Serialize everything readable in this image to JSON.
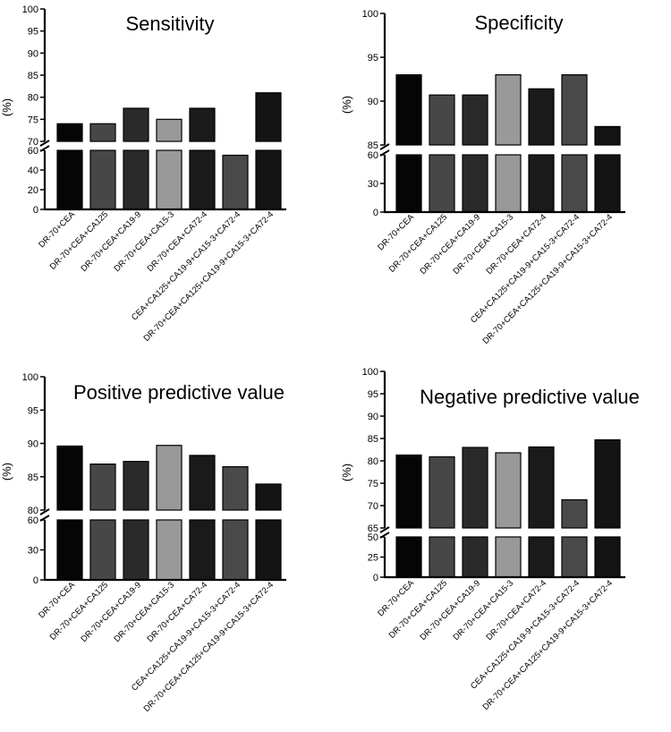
{
  "chart_data": [
    {
      "type": "bar",
      "title": "Sensitivity",
      "ylabel": "(%)",
      "xlabel": "",
      "broken_axis": true,
      "upper_ylim": [
        70,
        100
      ],
      "upper_ticks": [
        "70",
        "75",
        "80",
        "85",
        "90",
        "95",
        "100"
      ],
      "lower_ylim": [
        0,
        60
      ],
      "lower_ticks": [
        "0",
        "20",
        "40",
        "60"
      ],
      "categories": [
        "DR-70+CEA",
        "DR-70+CEA+CA125",
        "DR-70+CEA+CA19-9",
        "DR-70+CEA+CA15-3",
        "DR-70+CEA+CA72-4",
        "CEA+CA125+CA19-9+CA15-3+CA72-4",
        "DR-70+CEA+CA125+CA19-9+CA15-3+CA72-4"
      ],
      "values": [
        74,
        74,
        77.5,
        75,
        77.5,
        55,
        81
      ],
      "bar_colors": [
        "#050505",
        "#474747",
        "#2a2a2a",
        "#999999",
        "#1a1a1a",
        "#4a4a4a",
        "#141414"
      ]
    },
    {
      "type": "bar",
      "title": "Specificity",
      "ylabel": "(%)",
      "xlabel": "",
      "broken_axis": true,
      "upper_ylim": [
        85,
        100
      ],
      "upper_ticks": [
        "85",
        "90",
        "95",
        "100"
      ],
      "lower_ylim": [
        0,
        60
      ],
      "lower_ticks": [
        "0",
        "30",
        "60"
      ],
      "categories": [
        "DR-70+CEA",
        "DR-70+CEA+CA125",
        "DR-70+CEA+CA19-9",
        "DR-70+CEA+CA15-3",
        "DR-70+CEA+CA72-4",
        "CEA+CA125+CA19-9+CA15-3+CA72-4",
        "DR-70+CEA+CA125+CA19-9+CA15-3+CA72-4"
      ],
      "values": [
        93,
        90.7,
        90.7,
        93,
        91.4,
        93,
        87.1
      ],
      "bar_colors": [
        "#050505",
        "#474747",
        "#2a2a2a",
        "#999999",
        "#1a1a1a",
        "#4a4a4a",
        "#141414"
      ]
    },
    {
      "type": "bar",
      "title": "Positive predictive value",
      "ylabel": "(%)",
      "xlabel": "",
      "broken_axis": true,
      "upper_ylim": [
        80,
        100
      ],
      "upper_ticks": [
        "80",
        "85",
        "90",
        "95",
        "100"
      ],
      "lower_ylim": [
        0,
        60
      ],
      "lower_ticks": [
        "0",
        "30",
        "60"
      ],
      "categories": [
        "DR-70+CEA",
        "DR-70+CEA+CA125",
        "DR-70+CEA+CA19-9",
        "DR-70+CEA+CA15-3",
        "DR-70+CEA+CA72-4",
        "CEA+CA125+CA19-9+CA15-3+CA72-4",
        "DR-70+CEA+CA125+CA19-9+CA15-3+CA72-4"
      ],
      "values": [
        89.6,
        86.9,
        87.3,
        89.7,
        88.2,
        86.5,
        83.9
      ],
      "bar_colors": [
        "#050505",
        "#474747",
        "#2a2a2a",
        "#999999",
        "#1a1a1a",
        "#4a4a4a",
        "#141414"
      ]
    },
    {
      "type": "bar",
      "title": "Negative predictive value",
      "ylabel": "(%)",
      "xlabel": "",
      "broken_axis": true,
      "upper_ylim": [
        65,
        100
      ],
      "upper_ticks": [
        "65",
        "70",
        "75",
        "80",
        "85",
        "90",
        "95",
        "100"
      ],
      "lower_ylim": [
        0,
        50
      ],
      "lower_ticks": [
        "0",
        "25",
        "50"
      ],
      "categories": [
        "DR-70+CEA",
        "DR-70+CEA+CA125",
        "DR-70+CEA+CA19-9",
        "DR-70+CEA+CA15-3",
        "DR-70+CEA+CA72-4",
        "CEA+CA125+CA19-9+CA15-3+CA72-4",
        "DR-70+CEA+CA125+CA19-9+CA15-3+CA72-4"
      ],
      "values": [
        81.3,
        80.9,
        83,
        81.8,
        83.1,
        71.3,
        84.7
      ],
      "bar_colors": [
        "#050505",
        "#474747",
        "#2a2a2a",
        "#999999",
        "#1a1a1a",
        "#4a4a4a",
        "#141414"
      ]
    }
  ]
}
